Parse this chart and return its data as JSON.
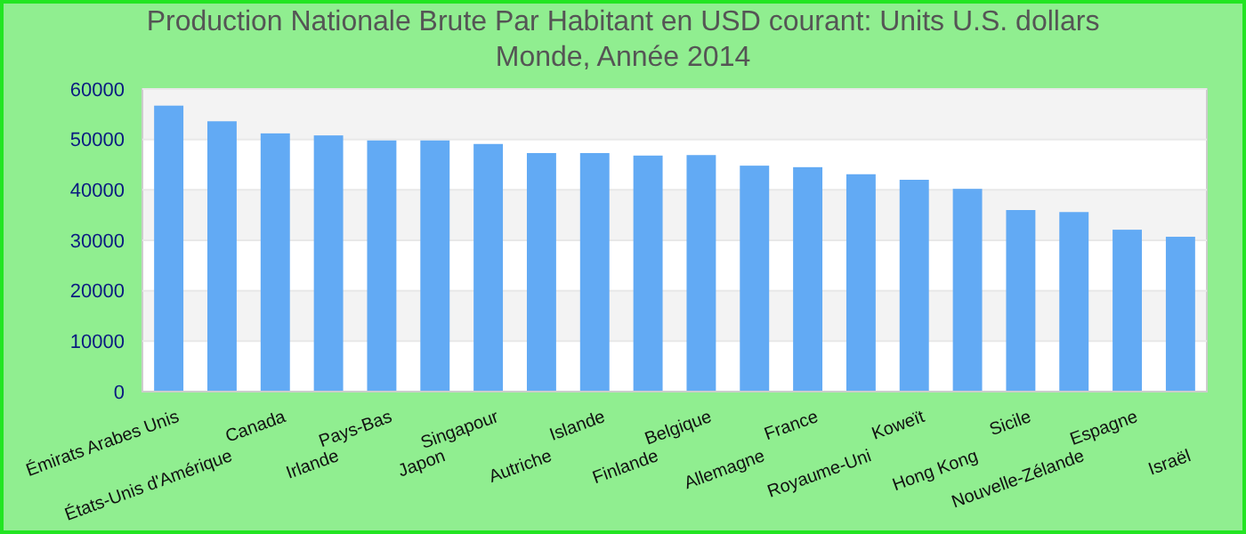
{
  "chart_data": {
    "type": "bar",
    "title": "Production Nationale Brute Par Habitant en USD courant: Units U.S. dollars\nMonde, Année 2014",
    "categories": [
      "Émirats Arabes Unis",
      "États-Unis d'Amérique",
      "Canada",
      "Irlande",
      "Pays-Bas",
      "Japon",
      "Singapour",
      "Autriche",
      "Islande",
      "Finlande",
      "Belgique",
      "Allemagne",
      "France",
      "Royaume-Uni",
      "Koweït",
      "Hong Kong",
      "Sicile",
      "Nouvelle-Zélande",
      "Espagne",
      "Israël"
    ],
    "values": [
      56700,
      53600,
      51200,
      50800,
      49800,
      49800,
      49100,
      47300,
      47300,
      46800,
      46900,
      44800,
      44500,
      43100,
      42000,
      40200,
      36000,
      35600,
      32100,
      30700
    ],
    "color": "#62aaf4",
    "ylim": [
      0,
      60000
    ],
    "yticks": [
      0,
      10000,
      20000,
      30000,
      40000,
      50000,
      60000
    ],
    "grid": "y"
  }
}
